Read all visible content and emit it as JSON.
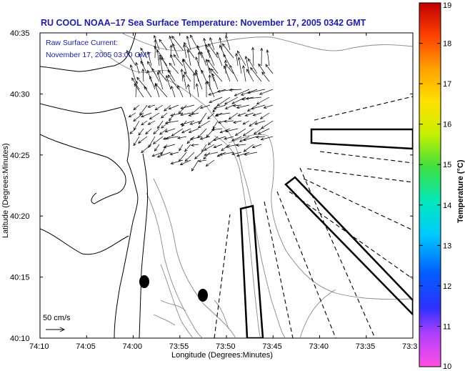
{
  "title": "RU COOL  NOAA–17  Sea Surface Temperature:  November 17, 2005 0342 GMT",
  "annotation": {
    "line1": "Raw Surface Current:",
    "line2": "November 17, 2005 03:00 GMT"
  },
  "axes": {
    "xlabel": "Longitude (Degrees:Minutes)",
    "ylabel": "Latitude (Degrees:Minutes)",
    "x_ticks": [
      "74:10",
      "74:05",
      "74:00",
      "73:55",
      "73:50",
      "73:45",
      "73:40",
      "73:35",
      "73:3"
    ],
    "y_ticks": [
      "40:35",
      "40:30",
      "40:25",
      "40:20",
      "40:15",
      "40:10"
    ]
  },
  "scale": {
    "label": "50 cm/s"
  },
  "colorbar": {
    "label": "Temperature (°C)",
    "ticks": [
      "19",
      "18",
      "17",
      "16",
      "15",
      "14",
      "13",
      "12",
      "11",
      "10"
    ],
    "min": 10,
    "max": 19
  },
  "colors": {
    "title": "#1c1cb4",
    "coastline": "#000000",
    "bathymetry": "#888888"
  }
}
